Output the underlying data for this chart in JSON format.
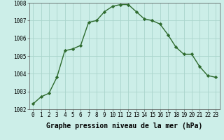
{
  "x": [
    0,
    1,
    2,
    3,
    4,
    5,
    6,
    7,
    8,
    9,
    10,
    11,
    12,
    13,
    14,
    15,
    16,
    17,
    18,
    19,
    20,
    21,
    22,
    23
  ],
  "y": [
    1002.3,
    1002.7,
    1002.9,
    1003.8,
    1005.3,
    1005.4,
    1005.6,
    1006.9,
    1007.0,
    1007.5,
    1007.8,
    1007.9,
    1007.9,
    1007.5,
    1007.1,
    1007.0,
    1006.8,
    1006.2,
    1005.5,
    1005.1,
    1005.1,
    1004.4,
    1003.9,
    1003.8
  ],
  "line_color": "#2d6a2d",
  "marker": "D",
  "marker_size": 2.2,
  "bg_color": "#cceee8",
  "grid_color": "#aad4cc",
  "xlabel": "Graphe pression niveau de la mer (hPa)",
  "ylim": [
    1002,
    1008
  ],
  "xlim_min": -0.5,
  "xlim_max": 23.5,
  "yticks": [
    1002,
    1003,
    1004,
    1005,
    1006,
    1007,
    1008
  ],
  "xticks": [
    0,
    1,
    2,
    3,
    4,
    5,
    6,
    7,
    8,
    9,
    10,
    11,
    12,
    13,
    14,
    15,
    16,
    17,
    18,
    19,
    20,
    21,
    22,
    23
  ],
  "tick_fontsize": 5.5,
  "label_fontsize": 7.0,
  "linewidth": 1.0
}
